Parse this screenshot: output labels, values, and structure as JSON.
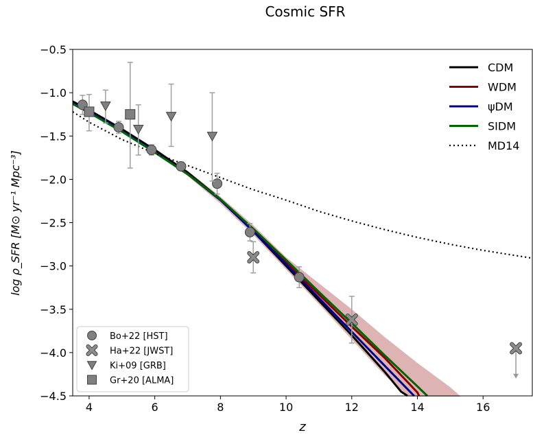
{
  "chart_data": {
    "type": "line",
    "title": "Cosmic SFR",
    "xlabel": "z",
    "ylabel": "log ρ_SFR [M⊙ yr⁻¹ Mpc⁻³]",
    "xlim": [
      3.5,
      17.5
    ],
    "ylim": [
      -4.5,
      -0.5
    ],
    "xticks": [
      4,
      6,
      8,
      10,
      12,
      14,
      16
    ],
    "yticks": [
      -0.5,
      -1.0,
      -1.5,
      -2.0,
      -2.5,
      -3.0,
      -3.5,
      -4.0,
      -4.5
    ],
    "xtick_labels": [
      "4",
      "6",
      "8",
      "10",
      "12",
      "14",
      "16"
    ],
    "ytick_labels": [
      "−0.5",
      "−1.0",
      "−1.5",
      "−2.0",
      "−2.5",
      "−3.0",
      "−3.5",
      "−4.0",
      "−4.5"
    ],
    "grid": false,
    "legend_lines_position": "top-right",
    "legend_points_position": "bottom-left",
    "series": [
      {
        "name": "CDM",
        "color": "#000000",
        "style": "solid",
        "x": [
          3.5,
          4,
          5,
          6,
          7,
          8,
          9,
          10,
          11,
          12,
          13,
          13.5,
          13.7
        ],
        "y": [
          -1.1,
          -1.2,
          -1.42,
          -1.66,
          -1.92,
          -2.23,
          -2.6,
          -3.0,
          -3.4,
          -3.8,
          -4.22,
          -4.45,
          -4.5
        ]
      },
      {
        "name": "WDM",
        "color": "#8b0000",
        "style": "solid",
        "x": [
          3.5,
          4,
          5,
          6,
          7,
          8,
          9,
          10,
          11,
          12,
          13,
          14,
          14.05
        ],
        "y": [
          -1.12,
          -1.22,
          -1.44,
          -1.68,
          -1.94,
          -2.23,
          -2.58,
          -2.96,
          -3.33,
          -3.7,
          -4.06,
          -4.46,
          -4.5
        ]
      },
      {
        "name": "ψDM",
        "color": "#00008b",
        "style": "solid",
        "x": [
          3.5,
          4,
          5,
          6,
          7,
          8,
          9,
          10,
          11,
          12,
          13,
          13.9
        ],
        "y": [
          -1.12,
          -1.22,
          -1.44,
          -1.68,
          -1.94,
          -2.24,
          -2.6,
          -2.98,
          -3.37,
          -3.76,
          -4.15,
          -4.5
        ]
      },
      {
        "name": "SIDM",
        "color": "#006400",
        "style": "solid",
        "x": [
          3.5,
          4,
          5,
          6,
          7,
          8,
          9,
          10,
          11,
          12,
          13,
          14,
          14.3
        ],
        "y": [
          -1.13,
          -1.23,
          -1.45,
          -1.69,
          -1.94,
          -2.23,
          -2.57,
          -2.93,
          -3.3,
          -3.66,
          -4.03,
          -4.39,
          -4.5
        ]
      },
      {
        "name": "MD14",
        "color": "#000000",
        "style": "dotted",
        "x": [
          3.5,
          4,
          5,
          6,
          7,
          8,
          9,
          10,
          11,
          12,
          13,
          14,
          15,
          16,
          17,
          17.5
        ],
        "y": [
          -1.22,
          -1.34,
          -1.54,
          -1.7,
          -1.84,
          -1.98,
          -2.12,
          -2.24,
          -2.37,
          -2.48,
          -2.58,
          -2.67,
          -2.75,
          -2.82,
          -2.88,
          -2.91
        ]
      }
    ],
    "band": {
      "color": "#d4a0a0",
      "x": [
        6,
        7,
        8,
        9,
        10,
        11,
        12,
        13,
        14,
        15,
        15.3
      ],
      "y_low": [
        -1.7,
        -1.96,
        -2.28,
        -2.64,
        -3.04,
        -3.44,
        -3.85,
        -4.26,
        -4.6,
        -4.9,
        -5.0
      ],
      "y_high": [
        -1.64,
        -1.9,
        -2.2,
        -2.53,
        -2.9,
        -3.2,
        -3.5,
        -3.82,
        -4.12,
        -4.4,
        -4.5
      ]
    },
    "points": [
      {
        "name": "Bo+22 [HST]",
        "marker": "circle",
        "x": 3.8,
        "y": -1.14,
        "yerr": [
          0.11,
          0.11
        ]
      },
      {
        "name": "Bo+22 [HST]",
        "marker": "circle",
        "x": 4.9,
        "y": -1.4,
        "yerr": [
          0.07,
          0.07
        ]
      },
      {
        "name": "Bo+22 [HST]",
        "marker": "circle",
        "x": 5.9,
        "y": -1.66,
        "yerr": [
          0.06,
          0.06
        ]
      },
      {
        "name": "Bo+22 [HST]",
        "marker": "circle",
        "x": 6.8,
        "y": -1.85,
        "yerr": [
          0.05,
          0.05
        ]
      },
      {
        "name": "Bo+22 [HST]",
        "marker": "circle",
        "x": 7.9,
        "y": -2.05,
        "yerr": [
          0.12,
          0.12
        ]
      },
      {
        "name": "Bo+22 [HST]",
        "marker": "circle",
        "x": 8.9,
        "y": -2.61,
        "yerr": [
          0.1,
          0.1
        ]
      },
      {
        "name": "Bo+22 [HST]",
        "marker": "circle",
        "x": 10.4,
        "y": -3.13,
        "yerr": [
          0.12,
          0.12
        ]
      },
      {
        "name": "Ha+22 [JWST]",
        "marker": "x",
        "x": 9.0,
        "y": -2.9,
        "yerr": [
          0.18,
          0.18
        ]
      },
      {
        "name": "Ha+22 [JWST]",
        "marker": "x",
        "x": 12.0,
        "y": -3.62,
        "yerr": [
          0.27,
          0.27
        ]
      },
      {
        "name": "Ha+22 [JWST]",
        "marker": "x",
        "x": 17.0,
        "y": -3.95,
        "upper_limit": true,
        "arrow_to": -4.3
      },
      {
        "name": "Ki+09 [GRB]",
        "marker": "triangle",
        "x": 4.5,
        "y": -1.15,
        "yerr": [
          0.2,
          0.18
        ]
      },
      {
        "name": "Ki+09 [GRB]",
        "marker": "triangle",
        "x": 5.5,
        "y": -1.42,
        "yerr": [
          0.3,
          0.28
        ]
      },
      {
        "name": "Ki+09 [GRB]",
        "marker": "triangle",
        "x": 6.5,
        "y": -1.27,
        "yerr": [
          0.35,
          0.37
        ]
      },
      {
        "name": "Ki+09 [GRB]",
        "marker": "triangle",
        "x": 7.75,
        "y": -1.5,
        "yerr": [
          0.52,
          0.5
        ]
      },
      {
        "name": "Gr+20 [ALMA]",
        "marker": "square",
        "x": 4.0,
        "y": -1.22,
        "yerr": [
          0.22,
          0.2
        ]
      },
      {
        "name": "Gr+20 [ALMA]",
        "marker": "square",
        "x": 5.25,
        "y": -1.25,
        "yerr": [
          0.62,
          0.6
        ]
      }
    ],
    "legend_lines": [
      "CDM",
      "WDM",
      "ψDM",
      "SIDM",
      "MD14"
    ],
    "legend_points": [
      {
        "label": "Bo+22 [HST]",
        "marker": "circle"
      },
      {
        "label": "Ha+22 [JWST]",
        "marker": "x"
      },
      {
        "label": "Ki+09 [GRB]",
        "marker": "triangle"
      },
      {
        "label": "Gr+20 [ALMA]",
        "marker": "square"
      }
    ]
  }
}
